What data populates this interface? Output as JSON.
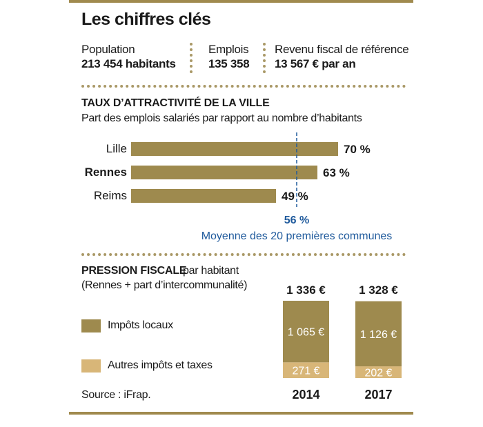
{
  "title": "Les chiffres clés",
  "stats": [
    {
      "label": "Population",
      "value": "213 454 habitants"
    },
    {
      "label": "Emplois",
      "value": "135 358"
    },
    {
      "label": "Revenu fiscal de référence",
      "value": "13 567 € par an"
    }
  ],
  "colors": {
    "rule": "#a08a4e",
    "bar": "#9e8a4e",
    "bar_light": "#d8b678",
    "average": "#1f5a9c"
  },
  "chart_data": [
    {
      "type": "bar",
      "orientation": "horizontal",
      "title": "TAUX D’ATTRACTIVITÉ DE LA VILLE",
      "subtitle": "Part des emplois salariés par rapport au nombre d’habitants",
      "categories": [
        "Lille",
        "Rennes",
        "Reims"
      ],
      "values": [
        70,
        63,
        49
      ],
      "value_labels": [
        "70 %",
        "63 %",
        "49 %"
      ],
      "highlight": "Rennes",
      "xlim": [
        0,
        80
      ],
      "reference_line": {
        "value": 56,
        "label": "56 %",
        "caption": "Moyenne des 20 premières communes"
      }
    },
    {
      "type": "bar",
      "stacked": true,
      "title": "PRESSION FISCALE",
      "title_suffix": "par habitant",
      "subtitle": "(Rennes + part d’intercommunalité)",
      "categories": [
        "2014",
        "2017"
      ],
      "series": [
        {
          "name": "Impôts locaux",
          "values": [
            1065,
            1126
          ],
          "labels": [
            "1 065 €",
            "1 126 €"
          ]
        },
        {
          "name": "Autres impôts et taxes",
          "values": [
            271,
            202
          ],
          "labels": [
            "271 €",
            "202 €"
          ]
        }
      ],
      "totals": [
        1336,
        1328
      ],
      "total_labels": [
        "1 336 €",
        "1 328 €"
      ],
      "ylim": [
        0,
        1336
      ],
      "source": "Source : iFrap."
    }
  ]
}
